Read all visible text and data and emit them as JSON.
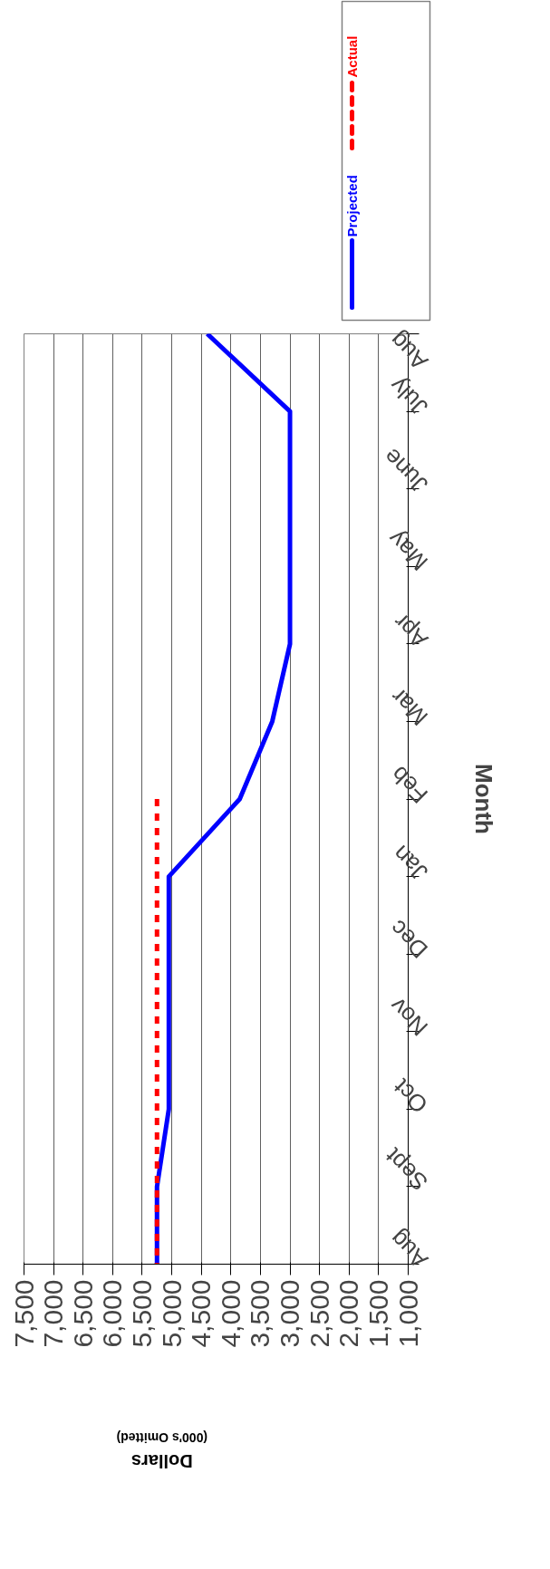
{
  "chart_data": {
    "type": "line",
    "orientation": "horizontal",
    "xlabel": "Dollars\n(000's Omitted)",
    "ylabel": "Month",
    "categories": [
      "Aug",
      "July",
      "June",
      "May",
      "Apr",
      "Mar",
      "Feb",
      "Jan",
      "Dec",
      "Nov",
      "Oct",
      "Sept",
      "Aug"
    ],
    "series": [
      {
        "name": "Projected",
        "color": "#0000ff",
        "line_style": "solid",
        "values": [
          4400,
          3000,
          3000,
          3000,
          3000,
          3300,
          3850,
          5050,
          5050,
          5050,
          5050,
          5250,
          5250
        ]
      },
      {
        "name": "Actual",
        "color": "#ff0000",
        "line_style": "dashed",
        "values": [
          null,
          null,
          null,
          null,
          null,
          null,
          5250,
          5250,
          5250,
          5250,
          5250,
          5250,
          5250
        ]
      }
    ],
    "xlim": [
      7500,
      1000
    ],
    "xticks": [
      {
        "value": 7500,
        "label": "7,500"
      },
      {
        "value": 7000,
        "label": "7,000"
      },
      {
        "value": 6500,
        "label": "6,500"
      },
      {
        "value": 6000,
        "label": "6,000"
      },
      {
        "value": 5500,
        "label": "5,500"
      },
      {
        "value": 5000,
        "label": "5,000"
      },
      {
        "value": 4500,
        "label": "4,500"
      },
      {
        "value": 4000,
        "label": "4,000"
      },
      {
        "value": 3500,
        "label": "3,500"
      },
      {
        "value": 3000,
        "label": "3,000"
      },
      {
        "value": 2500,
        "label": "2,500"
      },
      {
        "value": 2000,
        "label": "2,000"
      },
      {
        "value": 1500,
        "label": "1,500"
      },
      {
        "value": 1000,
        "label": "1,000"
      }
    ],
    "grid": "x",
    "legend": "top",
    "marker": "none"
  }
}
